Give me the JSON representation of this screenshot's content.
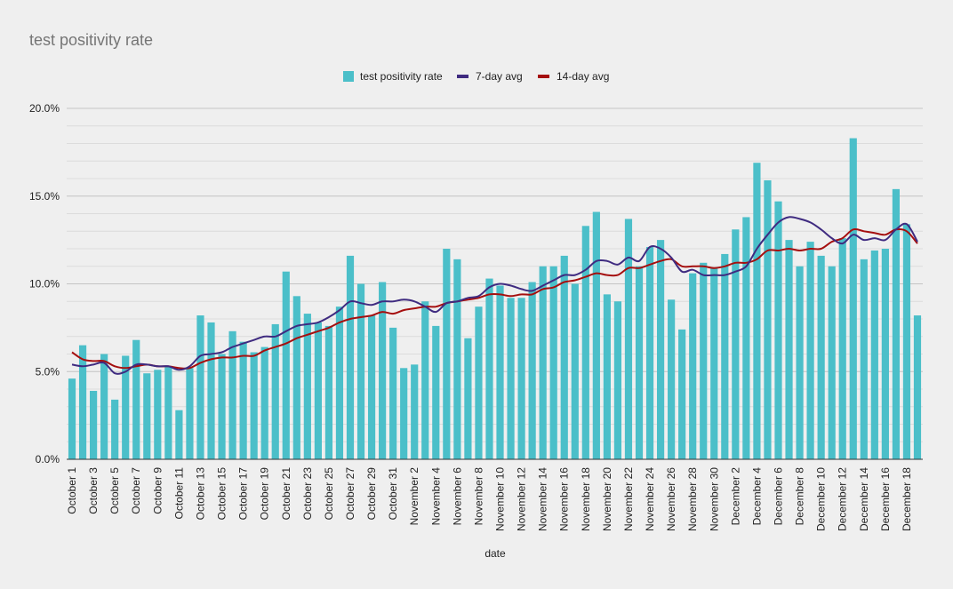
{
  "chart_data": {
    "type": "bar",
    "title": "test positivity rate",
    "xlabel": "date",
    "ylabel": "",
    "ylim": [
      0,
      20
    ],
    "y_ticks": [
      "0.0%",
      "5.0%",
      "10.0%",
      "15.0%",
      "20.0%"
    ],
    "grid": true,
    "legend_position": "top",
    "colors": {
      "bars": "#4bbfc9",
      "avg7": "#3f2b80",
      "avg14": "#a50f0f",
      "background": "#efefef",
      "grid": "#cfcfcf"
    },
    "categories": [
      "October 1",
      "October 2",
      "October 3",
      "October 4",
      "October 5",
      "October 6",
      "October 7",
      "October 8",
      "October 9",
      "October 10",
      "October 11",
      "October 12",
      "October 13",
      "October 14",
      "October 15",
      "October 16",
      "October 17",
      "October 18",
      "October 19",
      "October 20",
      "October 21",
      "October 22",
      "October 23",
      "October 24",
      "October 25",
      "October 26",
      "October 27",
      "October 28",
      "October 29",
      "October 30",
      "October 31",
      "November 1",
      "November 2",
      "November 3",
      "November 4",
      "November 5",
      "November 6",
      "November 7",
      "November 8",
      "November 9",
      "November 10",
      "November 11",
      "November 12",
      "November 13",
      "November 14",
      "November 15",
      "November 16",
      "November 17",
      "November 18",
      "November 19",
      "November 20",
      "November 21",
      "November 22",
      "November 23",
      "November 24",
      "November 25",
      "November 26",
      "November 27",
      "November 28",
      "November 29",
      "November 30",
      "December 1",
      "December 2",
      "December 3",
      "December 4",
      "December 5",
      "December 6",
      "December 7",
      "December 8",
      "December 9",
      "December 10",
      "December 11",
      "December 12",
      "December 13",
      "December 14",
      "December 15",
      "December 16",
      "December 17",
      "December 18",
      "December 19"
    ],
    "x_tick_labels": [
      "October 1",
      "October 3",
      "October 5",
      "October 7",
      "October 9",
      "October 11",
      "October 13",
      "October 15",
      "October 17",
      "October 19",
      "October 21",
      "October 23",
      "October 25",
      "October 27",
      "October 29",
      "October 31",
      "November 2",
      "November 4",
      "November 6",
      "November 8",
      "November 10",
      "November 12",
      "November 14",
      "November 16",
      "November 18",
      "November 20",
      "November 22",
      "November 24",
      "November 26",
      "November 28",
      "November 30",
      "December 2",
      "December 4",
      "December 6",
      "December 8",
      "December 10",
      "December 12",
      "December 14",
      "December 16",
      "December 18"
    ],
    "series": [
      {
        "name": "test positivity rate",
        "kind": "bar",
        "values": [
          4.6,
          6.5,
          3.9,
          6.0,
          3.4,
          5.9,
          6.8,
          4.9,
          5.1,
          5.3,
          2.8,
          5.2,
          8.2,
          7.8,
          6.0,
          7.3,
          6.7,
          6.1,
          6.4,
          7.7,
          10.7,
          9.3,
          8.3,
          7.8,
          7.6,
          8.7,
          11.6,
          10.0,
          8.2,
          10.1,
          7.5,
          5.2,
          5.4,
          9.0,
          7.6,
          12.0,
          11.4,
          6.9,
          8.7,
          10.3,
          9.9,
          9.2,
          9.2,
          10.1,
          11.0,
          11.0,
          11.6,
          10.0,
          13.3,
          14.1,
          9.4,
          9.0,
          13.7,
          11.0,
          12.1,
          12.5,
          9.1,
          7.4,
          10.6,
          11.2,
          10.9,
          11.7,
          13.1,
          13.8,
          16.9,
          15.9,
          14.7,
          12.5,
          11.0,
          12.4,
          11.6,
          11.0,
          12.6,
          18.3,
          11.4,
          11.9,
          12.0,
          15.4,
          13.4,
          8.2
        ]
      },
      {
        "name": "7-day avg",
        "kind": "line",
        "values": [
          5.4,
          5.3,
          5.4,
          5.5,
          4.9,
          5.0,
          5.4,
          5.4,
          5.3,
          5.3,
          5.1,
          5.3,
          5.9,
          6.0,
          6.1,
          6.4,
          6.6,
          6.8,
          7.0,
          7.0,
          7.3,
          7.6,
          7.7,
          7.8,
          8.1,
          8.5,
          9.0,
          8.9,
          8.8,
          9.0,
          9.0,
          9.1,
          9.0,
          8.7,
          8.4,
          8.9,
          9.0,
          9.2,
          9.3,
          9.8,
          10.0,
          9.9,
          9.7,
          9.6,
          9.9,
          10.2,
          10.5,
          10.5,
          10.8,
          11.3,
          11.3,
          11.1,
          11.5,
          11.3,
          12.1,
          12.0,
          11.5,
          10.7,
          10.8,
          10.5,
          10.5,
          10.5,
          10.7,
          11.0,
          12.0,
          12.8,
          13.5,
          13.8,
          13.7,
          13.5,
          13.1,
          12.6,
          12.3,
          12.8,
          12.5,
          12.6,
          12.5,
          13.1,
          13.4,
          12.4
        ]
      },
      {
        "name": "14-day avg",
        "kind": "line",
        "values": [
          6.1,
          5.7,
          5.6,
          5.6,
          5.3,
          5.2,
          5.3,
          5.4,
          5.3,
          5.3,
          5.2,
          5.2,
          5.5,
          5.7,
          5.8,
          5.8,
          5.9,
          5.9,
          6.2,
          6.4,
          6.6,
          6.9,
          7.1,
          7.3,
          7.5,
          7.8,
          8.0,
          8.1,
          8.2,
          8.4,
          8.3,
          8.5,
          8.6,
          8.7,
          8.7,
          8.9,
          9.0,
          9.1,
          9.2,
          9.4,
          9.4,
          9.3,
          9.4,
          9.4,
          9.7,
          9.8,
          10.1,
          10.2,
          10.4,
          10.6,
          10.5,
          10.5,
          10.9,
          10.9,
          11.1,
          11.3,
          11.4,
          11.0,
          11.0,
          11.0,
          10.9,
          11.0,
          11.2,
          11.2,
          11.4,
          11.9,
          11.9,
          12.0,
          11.9,
          12.0,
          12.0,
          12.4,
          12.6,
          13.1,
          13.0,
          12.9,
          12.8,
          13.1,
          13.0,
          12.3
        ]
      }
    ]
  }
}
